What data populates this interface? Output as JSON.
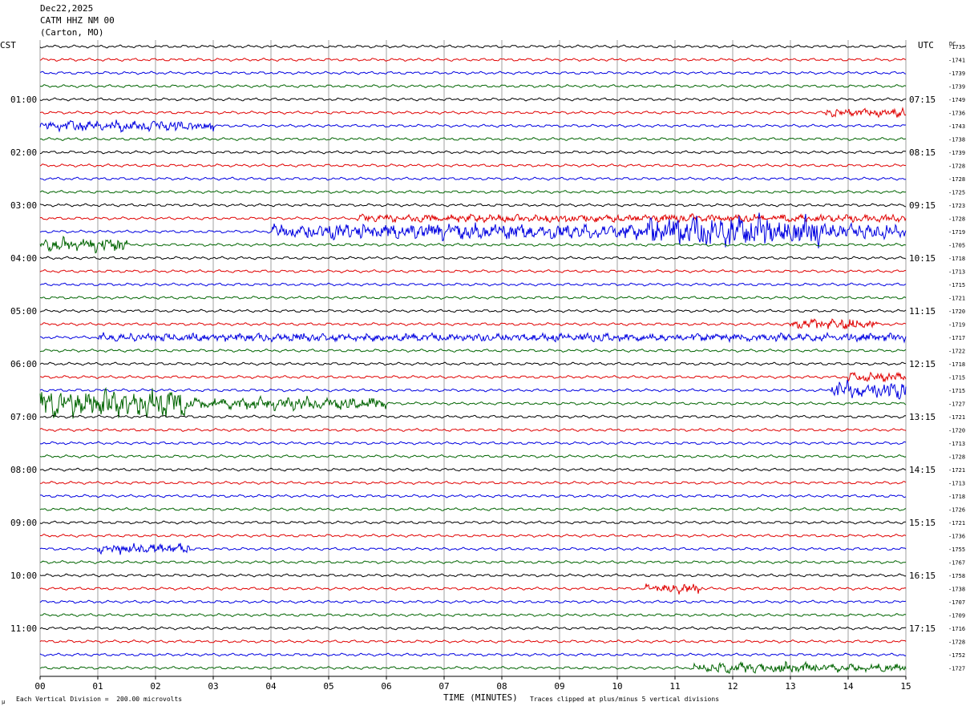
{
  "header": {
    "date": "Dec22,2025",
    "station": "CATM HHZ NM 00",
    "location": "(Carton, MO)"
  },
  "labels": {
    "left_tz": "CST",
    "right_tz": "UTC",
    "dc": "DC",
    "xaxis_title": "TIME (MINUTES)",
    "division_note": "Each Vertical Division =  200.00 microvolts",
    "clip_note": "Traces clipped at plus/minus 5 vertical divisions",
    "corner_mark": "μ"
  },
  "colors": {
    "cycle": [
      "#000000",
      "#e00000",
      "#0000e0",
      "#006400"
    ]
  },
  "chart_data": {
    "type": "line",
    "title": "CATM HHZ NM 00 (Carton, MO)",
    "xlabel": "TIME (MINUTES)",
    "xlim": [
      0,
      15
    ],
    "x_ticks": [
      "00",
      "01",
      "02",
      "03",
      "04",
      "05",
      "06",
      "07",
      "08",
      "09",
      "10",
      "11",
      "12",
      "13",
      "14",
      "15"
    ],
    "rows": 48,
    "minutes_per_row": 15,
    "left_hour_labels": [
      {
        "row": 4,
        "text": "01:00"
      },
      {
        "row": 8,
        "text": "02:00"
      },
      {
        "row": 12,
        "text": "03:00"
      },
      {
        "row": 16,
        "text": "04:00"
      },
      {
        "row": 20,
        "text": "05:00"
      },
      {
        "row": 24,
        "text": "06:00"
      },
      {
        "row": 28,
        "text": "07:00"
      },
      {
        "row": 32,
        "text": "08:00"
      },
      {
        "row": 36,
        "text": "09:00"
      },
      {
        "row": 40,
        "text": "10:00"
      },
      {
        "row": 44,
        "text": "11:00"
      }
    ],
    "right_hour_labels": [
      {
        "row": 4,
        "text": "07:15"
      },
      {
        "row": 8,
        "text": "08:15"
      },
      {
        "row": 12,
        "text": "09:15"
      },
      {
        "row": 16,
        "text": "10:15"
      },
      {
        "row": 20,
        "text": "11:15"
      },
      {
        "row": 24,
        "text": "12:15"
      },
      {
        "row": 28,
        "text": "13:15"
      },
      {
        "row": 32,
        "text": "14:15"
      },
      {
        "row": 36,
        "text": "15:15"
      },
      {
        "row": 40,
        "text": "16:15"
      },
      {
        "row": 44,
        "text": "17:15"
      }
    ],
    "dc_offsets": [
      "-1735",
      "-1741",
      "-1739",
      "-1739",
      "-1749",
      "-1736",
      "-1743",
      "-1738",
      "-1739",
      "-1728",
      "-1728",
      "-1725",
      "-1723",
      "-1728",
      "-1719",
      "-1705",
      "-1718",
      "-1713",
      "-1715",
      "-1721",
      "-1720",
      "-1719",
      "-1717",
      "-1722",
      "-1718",
      "-1715",
      "-1715",
      "-1727",
      "-1721",
      "-1720",
      "-1713",
      "-1728",
      "-1721",
      "-1713",
      "-1718",
      "-1726",
      "-1721",
      "-1736",
      "-1755",
      "-1767",
      "-1758",
      "-1738",
      "-1707",
      "-1709",
      "-1716",
      "-1728",
      "-1752",
      "-1727"
    ],
    "activity": [
      {
        "row": 5,
        "x0": 13.6,
        "x1": 15,
        "amp": 1.6
      },
      {
        "row": 6,
        "x0": 0,
        "x1": 3.0,
        "amp": 1.8
      },
      {
        "row": 13,
        "x0": 5.5,
        "x1": 15,
        "amp": 1.3
      },
      {
        "row": 14,
        "x0": 4.0,
        "x1": 15,
        "amp": 2.6
      },
      {
        "row": 14,
        "x0": 10.5,
        "x1": 13.5,
        "amp": 5.0
      },
      {
        "row": 15,
        "x0": 0,
        "x1": 1.5,
        "amp": 2.2
      },
      {
        "row": 21,
        "x0": 13.0,
        "x1": 14.5,
        "amp": 1.8
      },
      {
        "row": 22,
        "x0": 1.0,
        "x1": 15,
        "amp": 1.3
      },
      {
        "row": 25,
        "x0": 14.0,
        "x1": 15,
        "amp": 1.5
      },
      {
        "row": 26,
        "x0": 13.7,
        "x1": 15,
        "amp": 3.0
      },
      {
        "row": 27,
        "x0": 0,
        "x1": 2.5,
        "amp": 4.5
      },
      {
        "row": 27,
        "x0": 2.5,
        "x1": 6.0,
        "amp": 2.0
      },
      {
        "row": 38,
        "x0": 1.0,
        "x1": 2.6,
        "amp": 1.8
      },
      {
        "row": 41,
        "x0": 10.5,
        "x1": 11.5,
        "amp": 1.5
      },
      {
        "row": 47,
        "x0": 11.3,
        "x1": 13.5,
        "amp": 1.8
      },
      {
        "row": 47,
        "x0": 13.5,
        "x1": 15,
        "amp": 1.3
      }
    ]
  }
}
